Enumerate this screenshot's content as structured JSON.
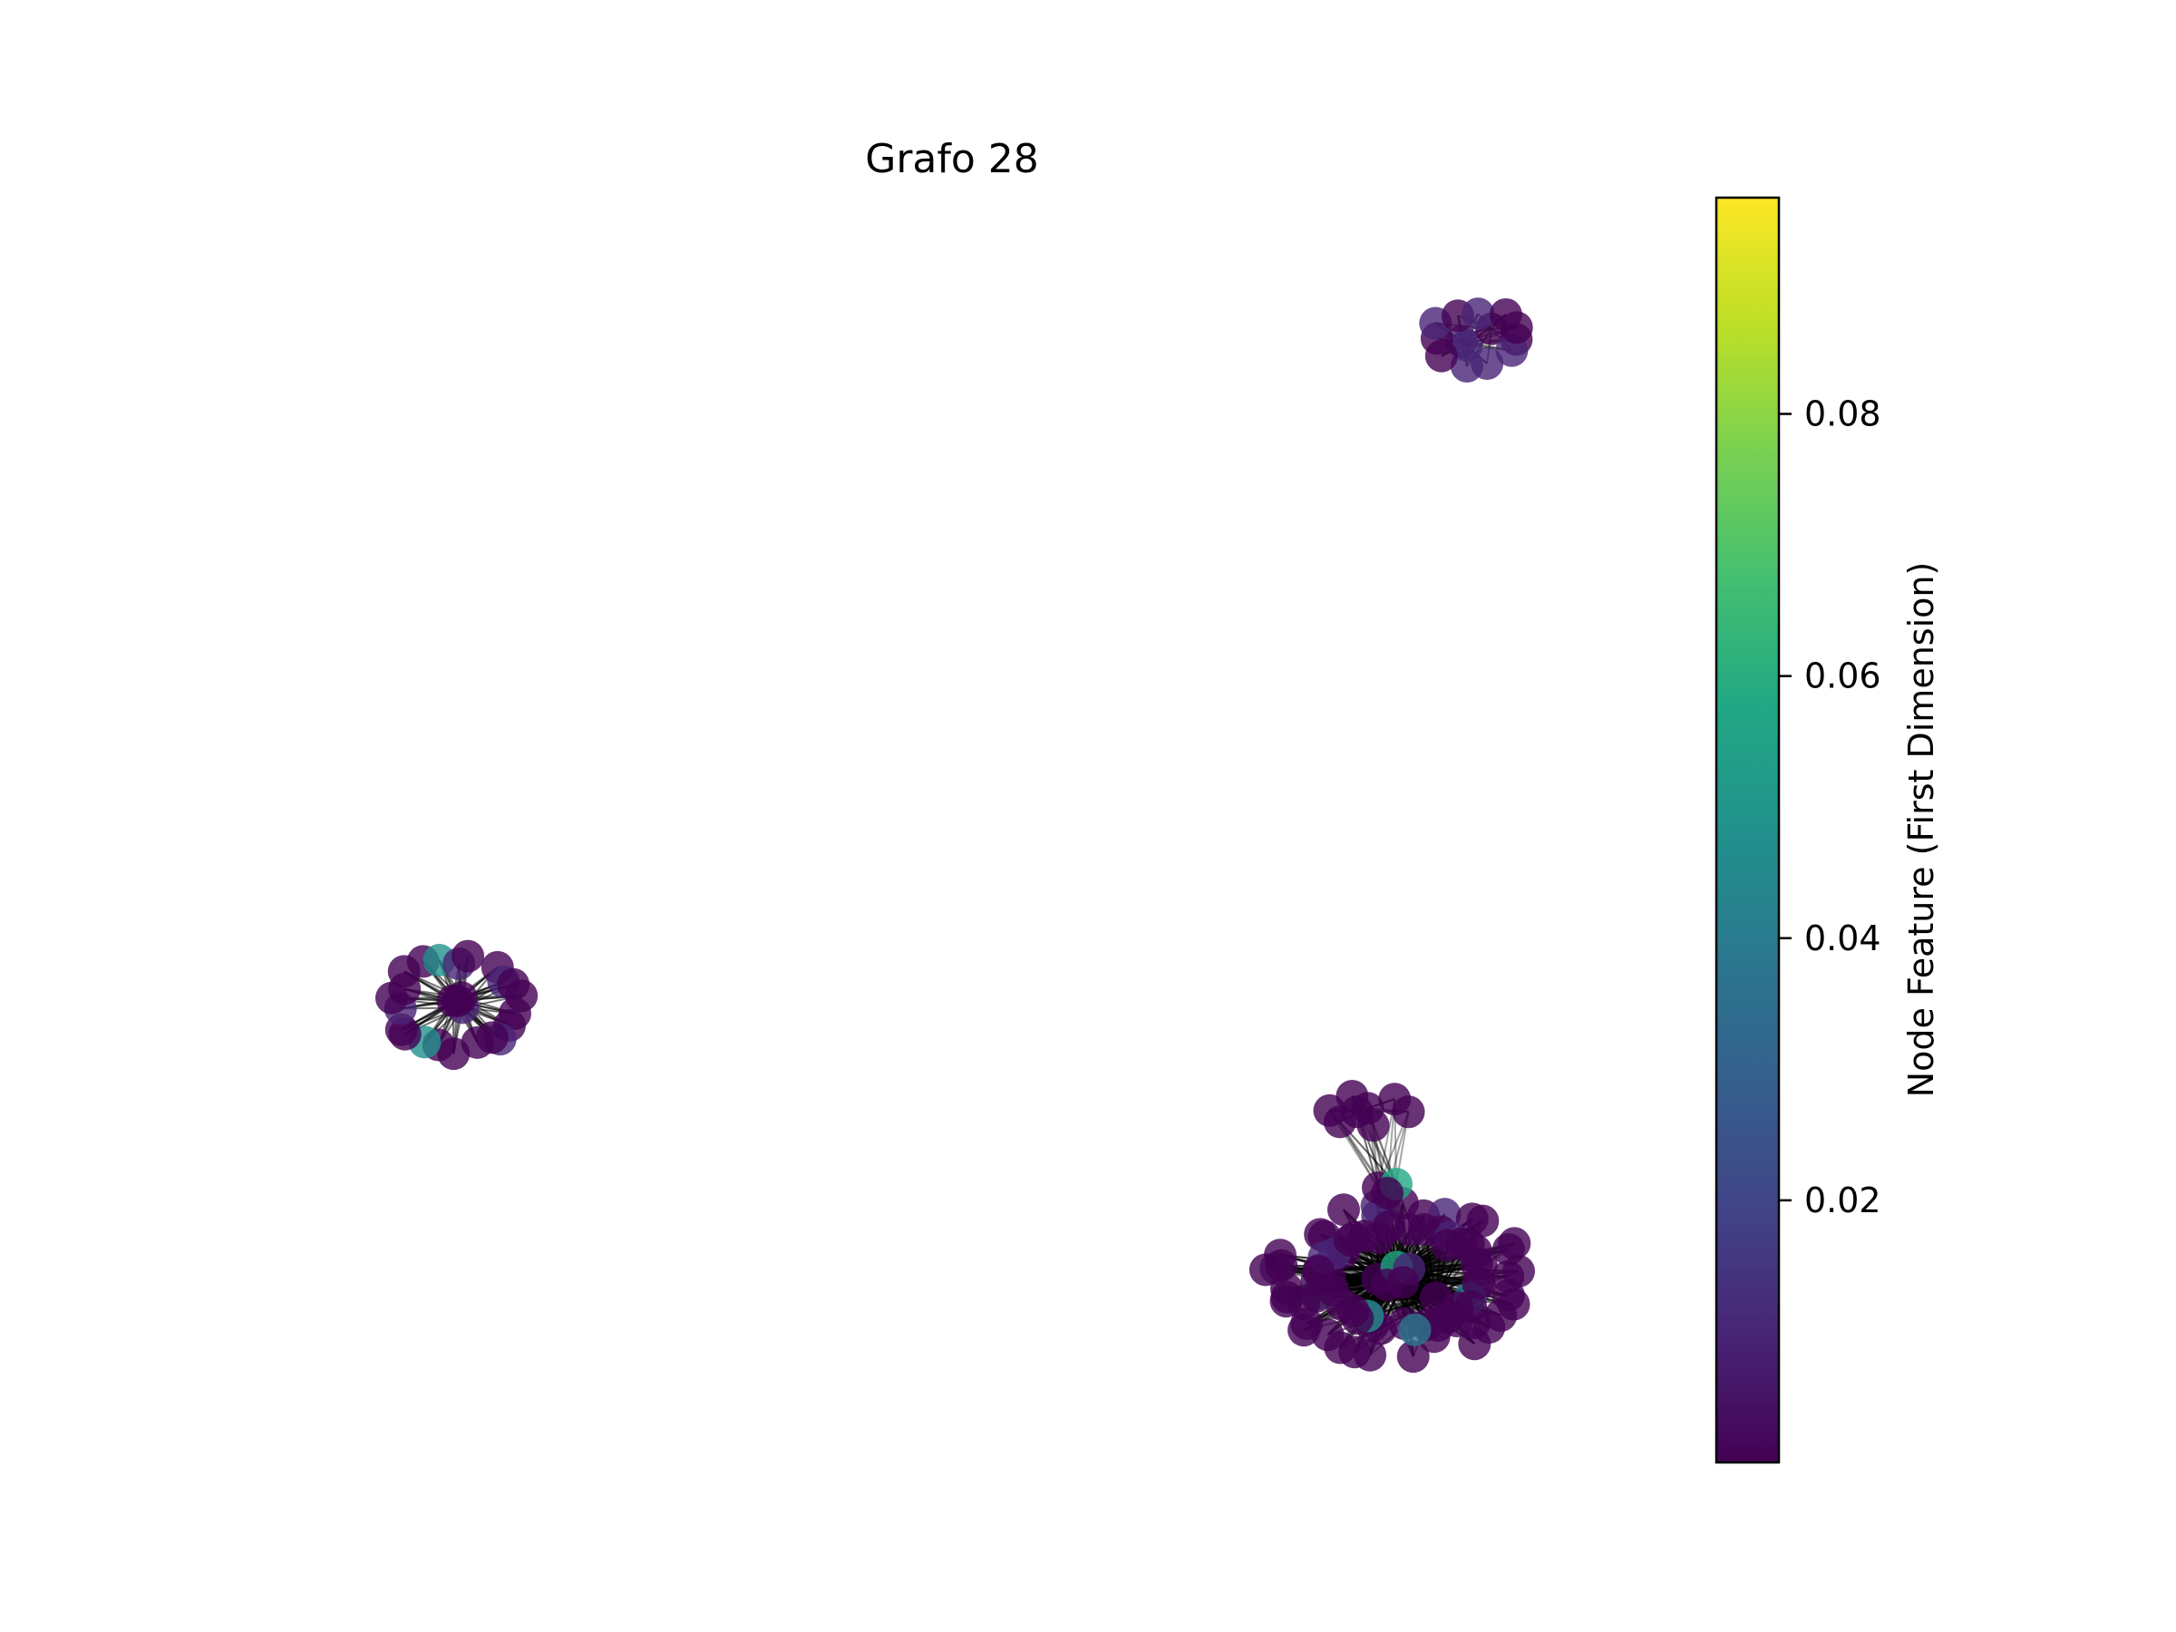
{
  "chart_data": {
    "type": "network",
    "title": "Grafo 28",
    "colorbar": {
      "label": "Node Feature (First Dimension)",
      "colormap": "viridis",
      "min": 0.0,
      "max": 0.0965,
      "ticks": [
        0.02,
        0.04,
        0.06,
        0.08
      ],
      "tick_labels": [
        "0.02",
        "0.04",
        "0.06",
        "0.08"
      ],
      "position": "right"
    },
    "clusters": [
      {
        "id": "cluster-top-right",
        "node_count": 14,
        "mean_feature": 0.001
      },
      {
        "id": "cluster-left",
        "node_count": 26,
        "mean_feature": 0.001
      },
      {
        "id": "cluster-bottom-right",
        "node_count": 80,
        "mean_feature": 0.004
      },
      {
        "id": "cluster-bridge",
        "node_count": 8,
        "mean_feature": 0.002
      }
    ],
    "node_color_min": "#440154",
    "edge_color": "#000000",
    "node_alpha": 0.8
  }
}
